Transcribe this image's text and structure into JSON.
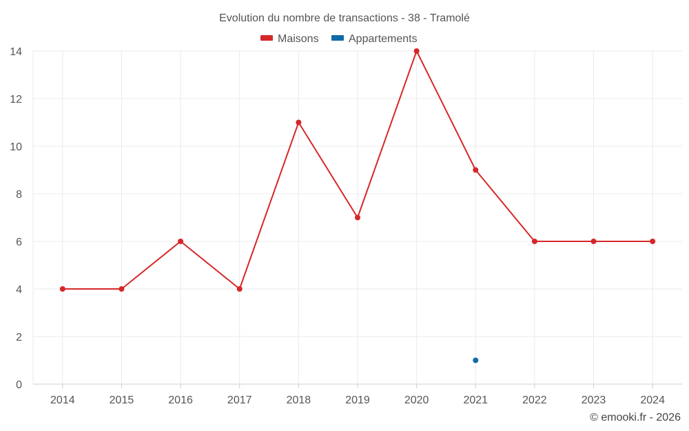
{
  "chart_data": {
    "type": "line",
    "title": "Evolution du nombre de transactions - 38 - Tramolé",
    "xlabel": "",
    "ylabel": "",
    "categories": [
      "2014",
      "2015",
      "2016",
      "2017",
      "2018",
      "2019",
      "2020",
      "2021",
      "2022",
      "2023",
      "2024"
    ],
    "ylim": [
      0,
      14
    ],
    "yticks": [
      "0",
      "2",
      "4",
      "6",
      "8",
      "10",
      "12",
      "14"
    ],
    "grid": true,
    "legend_position": "top-center",
    "series": [
      {
        "name": "Maisons",
        "color": "#d62728",
        "values": [
          4,
          4,
          6,
          4,
          11,
          7,
          14,
          9,
          6,
          6,
          6
        ]
      },
      {
        "name": "Appartements",
        "color": "#0f6aa6",
        "values": [
          null,
          null,
          null,
          null,
          null,
          null,
          null,
          1,
          null,
          null,
          null
        ]
      }
    ],
    "credit": "© emooki.fr - 2026"
  }
}
